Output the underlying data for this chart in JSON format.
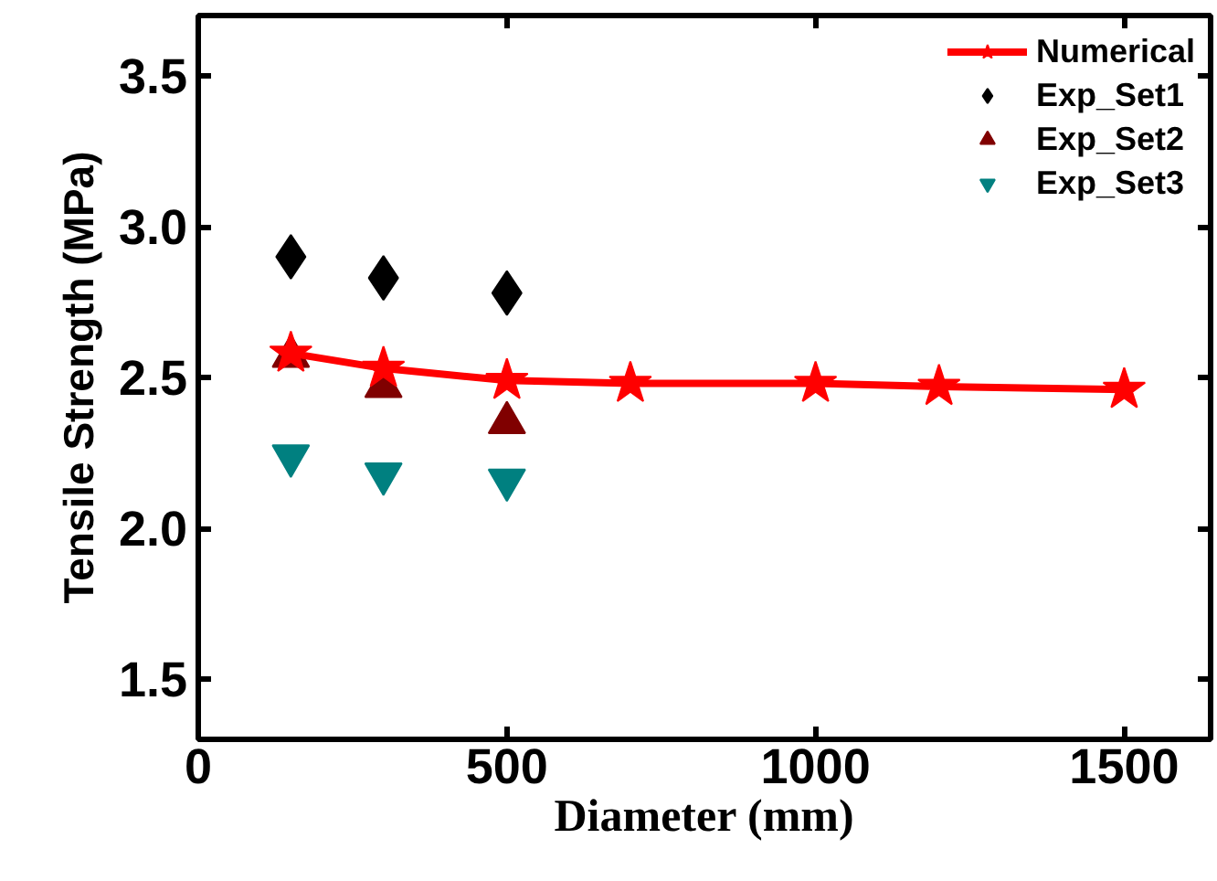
{
  "chart_data": {
    "type": "scatter",
    "xlabel": "Diameter (mm)",
    "ylabel": "Tensile Strength (MPa)",
    "xlim": [
      0,
      1640
    ],
    "xticks": [
      0,
      500,
      1000,
      1500
    ],
    "ylim": [
      1.3,
      3.7
    ],
    "yticks": [
      1.5,
      {
        "value": 2,
        "label": "2.0"
      },
      2.5,
      {
        "value": 3,
        "label": "3.0"
      },
      3.5
    ],
    "grid": false,
    "legend": "top right",
    "series": [
      {
        "name": "Numerical",
        "type": "line",
        "marker": "star",
        "line_style": "solid",
        "color": "#ff0000",
        "x": [
          150,
          300,
          500,
          700,
          1000,
          1200,
          1500
        ],
        "values": [
          2.58,
          2.53,
          2.49,
          2.48,
          2.48,
          2.47,
          2.46
        ]
      },
      {
        "name": "Exp_Set1",
        "marker": "diamond",
        "color": "#000000",
        "x": [
          150,
          300,
          500
        ],
        "values": [
          2.9,
          2.83,
          2.78
        ]
      },
      {
        "name": "Exp_Set2",
        "marker": "triangle",
        "color": "#800000",
        "x": [
          150,
          300,
          500
        ],
        "values": [
          2.57,
          2.47,
          2.35
        ]
      },
      {
        "name": "Exp_Set3",
        "marker": "triangle",
        "color": "#008080",
        "x": [
          150,
          300,
          500
        ],
        "values": [
          2.24,
          2.18,
          2.16
        ]
      }
    ]
  }
}
